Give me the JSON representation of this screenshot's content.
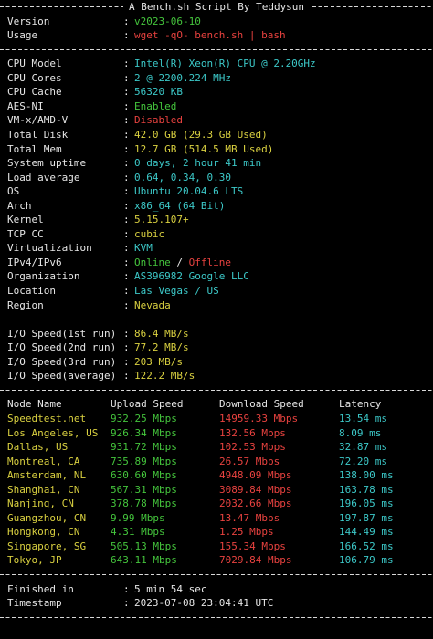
{
  "header": {
    "title": "A Bench.sh Script By Teddysun"
  },
  "separator": ":",
  "intro": [
    {
      "label": "Version",
      "value": "v2023-06-10"
    },
    {
      "label": "Usage",
      "value": "wget -qO- bench.sh | bash"
    }
  ],
  "system": [
    {
      "label": "CPU Model",
      "value": "Intel(R) Xeon(R) CPU @ 2.20GHz"
    },
    {
      "label": "CPU Cores",
      "value": "2 @ 2200.224 MHz"
    },
    {
      "label": "CPU Cache",
      "value": "56320 KB"
    },
    {
      "label": "AES-NI",
      "value": "Enabled"
    },
    {
      "label": "VM-x/AMD-V",
      "value": "Disabled"
    },
    {
      "label": "Total Disk",
      "value": "42.0 GB (29.3 GB Used)"
    },
    {
      "label": "Total Mem",
      "value": "12.7 GB (514.5 MB Used)"
    },
    {
      "label": "System uptime",
      "value": "0 days, 2 hour 41 min"
    },
    {
      "label": "Load average",
      "value": "0.64, 0.34, 0.30"
    },
    {
      "label": "OS",
      "value": "Ubuntu 20.04.6 LTS"
    },
    {
      "label": "Arch",
      "value": "x86_64 (64 Bit)"
    },
    {
      "label": "Kernel",
      "value": "5.15.107+"
    },
    {
      "label": "TCP CC",
      "value": "cubic"
    },
    {
      "label": "Virtualization",
      "value": "KVM"
    },
    {
      "label": "IPv4/IPv6",
      "value": {
        "ipv4": "Online",
        "divider": "/",
        "ipv6": "Offline"
      }
    },
    {
      "label": "Organization",
      "value": "AS396982 Google LLC"
    },
    {
      "label": "Location",
      "value": "Las Vegas / US"
    },
    {
      "label": "Region",
      "value": "Nevada"
    }
  ],
  "io": [
    {
      "label": "I/O Speed(1st run)",
      "value": "86.4 MB/s"
    },
    {
      "label": "I/O Speed(2nd run)",
      "value": "77.2 MB/s"
    },
    {
      "label": "I/O Speed(3rd run)",
      "value": "203 MB/s"
    },
    {
      "label": "I/O Speed(average)",
      "value": "122.2 MB/s"
    }
  ],
  "speedtest": {
    "columns": [
      "Node Name",
      "Upload Speed",
      "Download Speed",
      "Latency"
    ],
    "rows": [
      [
        "Speedtest.net",
        "932.25 Mbps",
        "14959.33 Mbps",
        "13.54 ms"
      ],
      [
        "Los Angeles, US",
        "926.34 Mbps",
        "132.56 Mbps",
        "8.09 ms"
      ],
      [
        "Dallas, US",
        "931.72 Mbps",
        "102.53 Mbps",
        "32.87 ms"
      ],
      [
        "Montreal, CA",
        "735.89 Mbps",
        "26.57 Mbps",
        "72.20 ms"
      ],
      [
        "Amsterdam, NL",
        "630.60 Mbps",
        "4948.09 Mbps",
        "138.00 ms"
      ],
      [
        "Shanghai, CN",
        "567.31 Mbps",
        "3089.84 Mbps",
        "163.78 ms"
      ],
      [
        "Nanjing, CN",
        "378.78 Mbps",
        "2032.66 Mbps",
        "196.05 ms"
      ],
      [
        "Guangzhou, CN",
        "9.99 Mbps",
        "13.47 Mbps",
        "197.87 ms"
      ],
      [
        "Hongkong, CN",
        "4.31 Mbps",
        "1.25 Mbps",
        "144.49 ms"
      ],
      [
        "Singapore, SG",
        "505.13 Mbps",
        "155.34 Mbps",
        "166.52 ms"
      ],
      [
        "Tokyo, JP",
        "643.11 Mbps",
        "7029.84 Mbps",
        "106.79 ms"
      ]
    ]
  },
  "footer": [
    {
      "label": "Finished in",
      "value": "5 min 54 sec"
    },
    {
      "label": "Timestamp",
      "value": "2023-07-08 23:04:41 UTC"
    }
  ]
}
